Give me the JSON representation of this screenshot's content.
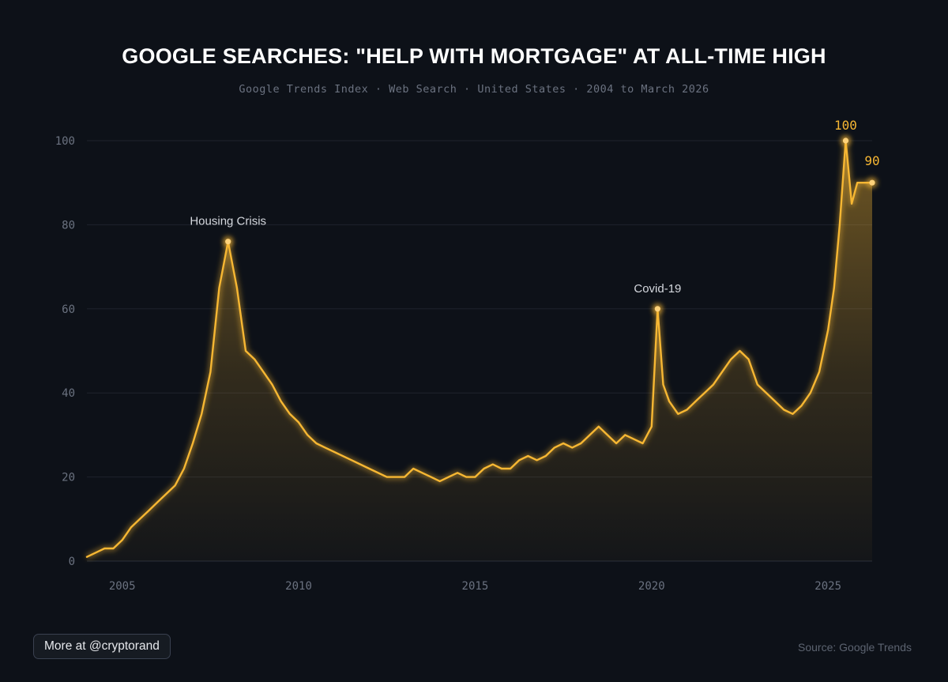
{
  "header": {
    "title": "GOOGLE SEARCHES: \"HELP WITH MORTGAGE\" AT ALL-TIME HIGH",
    "subtitle": "Google Trends Index · Web Search · United States · 2004 to March 2026"
  },
  "footer": {
    "more_label": "More at @cryptorand",
    "source": "Source: Google Trends"
  },
  "colors": {
    "background": "#0d1118",
    "line": "#f7b733",
    "grid": "#1e232c"
  },
  "chart_data": {
    "type": "area",
    "title": "GOOGLE SEARCHES: \"HELP WITH MORTGAGE\" AT ALL-TIME HIGH",
    "xlabel": "",
    "ylabel": "",
    "xlim": [
      2004,
      2026.25
    ],
    "ylim": [
      0,
      100
    ],
    "y_ticks": [
      0,
      20,
      40,
      60,
      80,
      100
    ],
    "x_ticks": [
      2005,
      2010,
      2015,
      2020,
      2025
    ],
    "grid": true,
    "series": [
      {
        "name": "Google Trends Index",
        "x": [
          2004.0,
          2004.5,
          2004.75,
          2005.0,
          2005.25,
          2005.5,
          2005.75,
          2006.0,
          2006.25,
          2006.5,
          2006.75,
          2007.0,
          2007.25,
          2007.5,
          2007.75,
          2008.0,
          2008.25,
          2008.5,
          2008.75,
          2009.0,
          2009.25,
          2009.5,
          2009.75,
          2010.0,
          2010.25,
          2010.5,
          2010.75,
          2011.0,
          2011.5,
          2012.0,
          2012.5,
          2013.0,
          2013.25,
          2013.5,
          2013.75,
          2014.0,
          2014.25,
          2014.5,
          2014.75,
          2015.0,
          2015.25,
          2015.5,
          2015.75,
          2016.0,
          2016.25,
          2016.5,
          2016.75,
          2017.0,
          2017.25,
          2017.5,
          2017.75,
          2018.0,
          2018.25,
          2018.5,
          2018.75,
          2019.0,
          2019.25,
          2019.5,
          2019.75,
          2020.0,
          2020.17,
          2020.33,
          2020.5,
          2020.75,
          2021.0,
          2021.25,
          2021.5,
          2021.75,
          2022.0,
          2022.25,
          2022.5,
          2022.75,
          2023.0,
          2023.25,
          2023.5,
          2023.75,
          2024.0,
          2024.25,
          2024.5,
          2024.75,
          2025.0,
          2025.17,
          2025.33,
          2025.5,
          2025.67,
          2025.83,
          2026.0,
          2026.25
        ],
        "values": [
          1,
          3,
          3,
          5,
          8,
          10,
          12,
          14,
          16,
          18,
          22,
          28,
          35,
          45,
          65,
          76,
          65,
          50,
          48,
          45,
          42,
          38,
          35,
          33,
          30,
          28,
          27,
          26,
          24,
          22,
          20,
          20,
          22,
          21,
          20,
          19,
          20,
          21,
          20,
          20,
          22,
          23,
          22,
          22,
          24,
          25,
          24,
          25,
          27,
          28,
          27,
          28,
          30,
          32,
          30,
          28,
          30,
          29,
          28,
          32,
          60,
          42,
          38,
          35,
          36,
          38,
          40,
          42,
          45,
          48,
          50,
          48,
          42,
          40,
          38,
          36,
          35,
          37,
          40,
          45,
          55,
          65,
          80,
          100,
          85,
          90,
          90,
          90
        ]
      }
    ],
    "annotations": [
      {
        "text": "Housing Crisis",
        "x": 2008.0,
        "y": 76
      },
      {
        "text": "Covid-19",
        "x": 2020.17,
        "y": 60
      }
    ],
    "value_labels": [
      {
        "text": "100",
        "x": 2025.5,
        "y": 100
      },
      {
        "text": "90",
        "x": 2026.25,
        "y": 90
      }
    ]
  }
}
